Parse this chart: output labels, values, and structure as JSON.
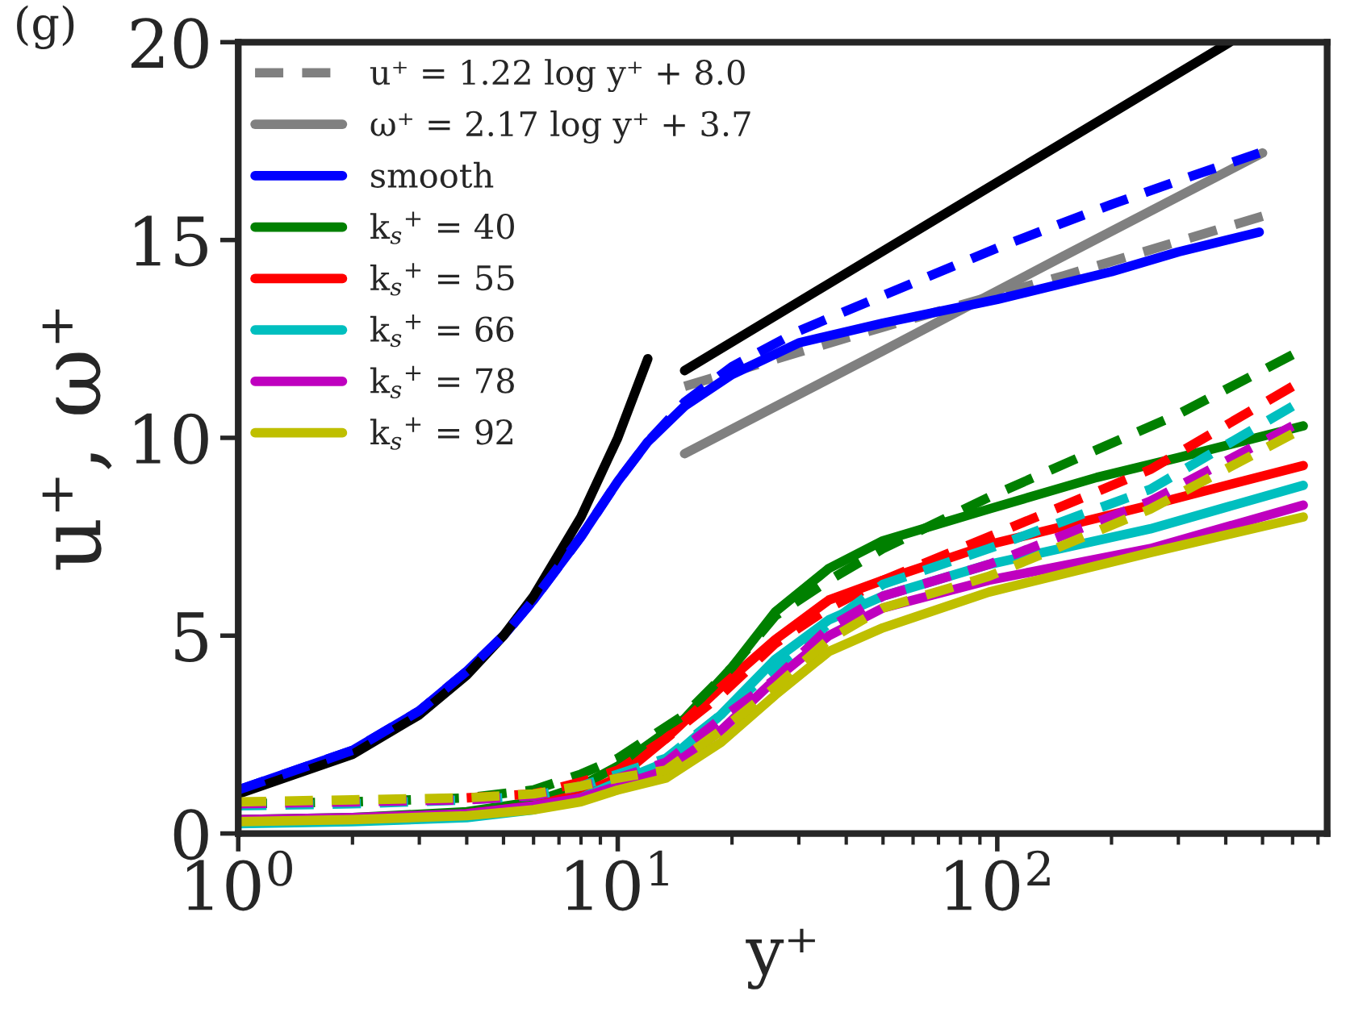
{
  "chart_data": {
    "type": "line",
    "xlabel": "y⁺",
    "ylabel": "u⁺, ω⁺",
    "annotations": [
      "(g)"
    ],
    "log": "x",
    "xlim": [
      1,
      740
    ],
    "ylim": [
      0,
      20
    ],
    "xticks": [
      {
        "value": 1,
        "label": "10$^{0}$"
      },
      {
        "value": 10,
        "label": "10$^{1}$"
      },
      {
        "value": 100,
        "label": "10$^{2}$"
      }
    ],
    "yticks": [
      0,
      5,
      10,
      15,
      20
    ],
    "grid": false,
    "legend": "top left",
    "marker": "none",
    "series": [
      {
        "name": "u⁺ = 1.22 log y⁺ + 8.0",
        "color": "#808080",
        "line_style": "dashed",
        "x": [
          15,
          50,
          150,
          500
        ],
        "values": [
          11.3,
          12.8,
          14.1,
          15.6
        ]
      },
      {
        "name": "ω⁺ = 2.17 log y⁺ + 3.7",
        "color": "#808080",
        "line_style": "solid",
        "x": [
          15,
          50,
          150,
          500
        ],
        "values": [
          9.6,
          12.2,
          14.6,
          17.2
        ]
      },
      {
        "name": "smooth",
        "color": "#0000ff",
        "line_style": "solid",
        "x": [
          1,
          2,
          3,
          4,
          5,
          6,
          8,
          10,
          12,
          15,
          20,
          30,
          50,
          100,
          200,
          300,
          490
        ],
        "values": [
          1.1,
          2.1,
          3.1,
          4.1,
          5.0,
          5.9,
          7.5,
          8.9,
          9.9,
          10.8,
          11.6,
          12.4,
          12.9,
          13.5,
          14.2,
          14.7,
          15.2
        ]
      },
      {
        "name": "k$_{s}$$^{+}$ = 40",
        "color": "#008000",
        "line_style": "solid",
        "x": [
          1,
          2,
          4,
          6,
          8,
          10,
          15,
          20,
          26,
          36,
          50,
          95,
          183,
          300,
          640
        ],
        "values": [
          0.35,
          0.4,
          0.55,
          0.8,
          1.2,
          1.7,
          2.9,
          4.2,
          5.6,
          6.7,
          7.4,
          8.2,
          9.0,
          9.5,
          10.3
        ]
      },
      {
        "name": "k$_{s}$$^{+}$ = 55",
        "color": "#ff0000",
        "line_style": "solid",
        "x": [
          4,
          6,
          8,
          10,
          13.4,
          18.7,
          26,
          36,
          50,
          95,
          253,
          640
        ],
        "values": [
          0.5,
          0.7,
          1.0,
          1.4,
          2.4,
          3.7,
          4.9,
          5.9,
          6.4,
          7.3,
          8.3,
          9.3
        ]
      },
      {
        "name": "k$_{s}$$^{+}$ = 66",
        "color": "#00bfbf",
        "line_style": "solid",
        "x": [
          1,
          2,
          4,
          6,
          8,
          10,
          13.4,
          18.7,
          26,
          36,
          50,
          95,
          253,
          640
        ],
        "values": [
          0.25,
          0.3,
          0.4,
          0.6,
          0.9,
          1.3,
          1.8,
          3.0,
          4.4,
          5.4,
          6.0,
          6.8,
          7.7,
          8.8
        ]
      },
      {
        "name": "k$_{s}$$^{+}$ = 78",
        "color": "#bf00bf",
        "line_style": "solid",
        "x": [
          1,
          2,
          4,
          6,
          8,
          10,
          13.4,
          18.7,
          26,
          36,
          50,
          95,
          253,
          640
        ],
        "values": [
          0.35,
          0.4,
          0.5,
          0.7,
          0.9,
          1.2,
          1.6,
          2.6,
          3.9,
          5.0,
          5.7,
          6.4,
          7.2,
          8.3
        ]
      },
      {
        "name": "k$_{s}$$^{+}$ = 92",
        "color": "#bfbf00",
        "line_style": "solid",
        "x": [
          1,
          2,
          4,
          6,
          8,
          10,
          13.4,
          18.7,
          26,
          36,
          50,
          95,
          253,
          640
        ],
        "values": [
          0.3,
          0.35,
          0.45,
          0.6,
          0.8,
          1.1,
          1.4,
          2.3,
          3.5,
          4.6,
          5.2,
          6.1,
          7.1,
          8.0
        ]
      },
      {
        "color": "#000000",
        "line_style": "solid",
        "x": [
          1,
          2,
          3,
          4,
          5,
          6,
          8,
          10,
          12
        ],
        "values": [
          1,
          2,
          3,
          4,
          5,
          6,
          8,
          10,
          12
        ]
      },
      {
        "color": "#000000",
        "line_style": "solid",
        "x": [
          15,
          410
        ],
        "values": [
          11.7,
          20
        ]
      },
      {
        "color": "#0000ff",
        "line_style": "dashed",
        "x": [
          1,
          2,
          3,
          4,
          5,
          6,
          8,
          10,
          12,
          15,
          20,
          30,
          50,
          100,
          200,
          300,
          490
        ],
        "values": [
          1.1,
          2.1,
          3.1,
          4.1,
          5.0,
          5.9,
          7.5,
          8.9,
          9.9,
          10.9,
          11.8,
          12.7,
          13.6,
          14.8,
          15.9,
          16.5,
          17.2
        ]
      },
      {
        "color": "#008000",
        "line_style": "dashed",
        "x": [
          1,
          2,
          4,
          6,
          8,
          10,
          15,
          20,
          26,
          36,
          50,
          95,
          183,
          300,
          600
        ],
        "values": [
          0.75,
          0.8,
          0.9,
          1.1,
          1.5,
          1.9,
          3.0,
          4.2,
          5.5,
          6.4,
          7.2,
          8.5,
          9.7,
          10.6,
          12.1
        ]
      },
      {
        "color": "#ff0000",
        "line_style": "dashed",
        "x": [
          4,
          6,
          8,
          10,
          13.4,
          18.7,
          26,
          36,
          50,
          95,
          253,
          600
        ],
        "values": [
          0.9,
          1.0,
          1.3,
          1.6,
          2.4,
          3.5,
          4.8,
          5.7,
          6.4,
          7.5,
          9.2,
          11.3
        ]
      },
      {
        "color": "#00bfbf",
        "line_style": "dashed",
        "x": [
          1,
          2,
          4,
          6,
          8,
          10,
          13.4,
          18.7,
          26,
          36,
          50,
          95,
          253,
          600
        ],
        "values": [
          0.7,
          0.75,
          0.85,
          0.95,
          1.2,
          1.5,
          1.9,
          3.0,
          4.2,
          5.3,
          6.3,
          7.2,
          8.7,
          10.8
        ]
      },
      {
        "color": "#bf00bf",
        "line_style": "dashed",
        "x": [
          1,
          2,
          4,
          6,
          8,
          10,
          13.4,
          18.7,
          26,
          36,
          50,
          95,
          253,
          600
        ],
        "values": [
          0.75,
          0.8,
          0.85,
          0.95,
          1.2,
          1.4,
          1.8,
          2.9,
          3.9,
          5.2,
          6.0,
          6.8,
          8.4,
          10.3
        ]
      },
      {
        "color": "#bfbf00",
        "line_style": "dashed",
        "x": [
          1,
          2,
          4,
          6,
          8,
          10,
          13.4,
          18.7,
          26,
          36,
          50,
          95,
          253,
          600
        ],
        "values": [
          0.8,
          0.85,
          0.9,
          1.0,
          1.2,
          1.4,
          1.6,
          2.6,
          3.7,
          4.9,
          5.7,
          6.5,
          8.2,
          10.1
        ]
      }
    ]
  }
}
